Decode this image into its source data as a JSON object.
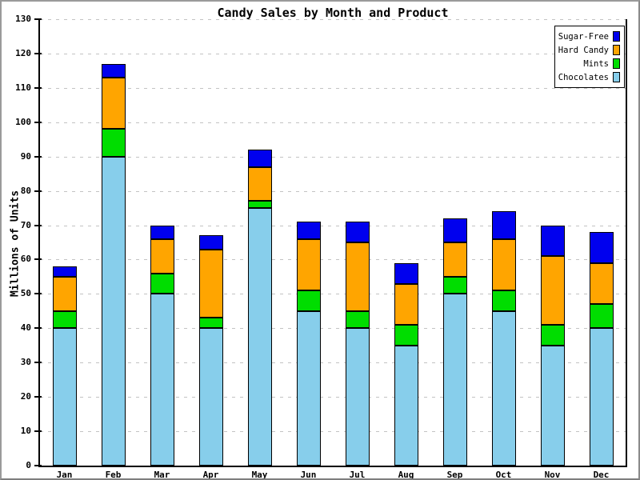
{
  "chart_data": {
    "type": "bar",
    "stacked": true,
    "title": "Candy Sales by Month and Product",
    "ylabel": "Millions of Units",
    "xlabel": "",
    "categories": [
      "Jan",
      "Feb",
      "Mar",
      "Apr",
      "May",
      "Jun",
      "Jul",
      "Aug",
      "Sep",
      "Oct",
      "Nov",
      "Dec"
    ],
    "series": [
      {
        "name": "Chocolates",
        "color": "#87CEEB",
        "values": [
          40,
          90,
          50,
          40,
          75,
          45,
          40,
          35,
          50,
          45,
          35,
          40
        ]
      },
      {
        "name": "Mints",
        "color": "#00DD00",
        "values": [
          5,
          8,
          6,
          3,
          2,
          6,
          5,
          6,
          5,
          6,
          6,
          7
        ]
      },
      {
        "name": "Hard Candy",
        "color": "#FFA500",
        "values": [
          10,
          15,
          10,
          20,
          10,
          15,
          20,
          12,
          10,
          15,
          20,
          12
        ]
      },
      {
        "name": "Sugar-Free",
        "color": "#0000EE",
        "values": [
          3,
          4,
          4,
          4,
          5,
          5,
          6,
          6,
          7,
          8,
          9,
          9
        ]
      }
    ],
    "ylim": [
      0,
      130
    ],
    "yticks": [
      0,
      10,
      20,
      30,
      40,
      50,
      60,
      70,
      80,
      90,
      100,
      110,
      120,
      130
    ],
    "grid": "horizontal-dashed",
    "grid_color": "#C3C3C3",
    "axis_color": "#000000",
    "legend_position": "top-right",
    "legend_order": [
      "Sugar-Free",
      "Hard Candy",
      "Mints",
      "Chocolates"
    ]
  }
}
